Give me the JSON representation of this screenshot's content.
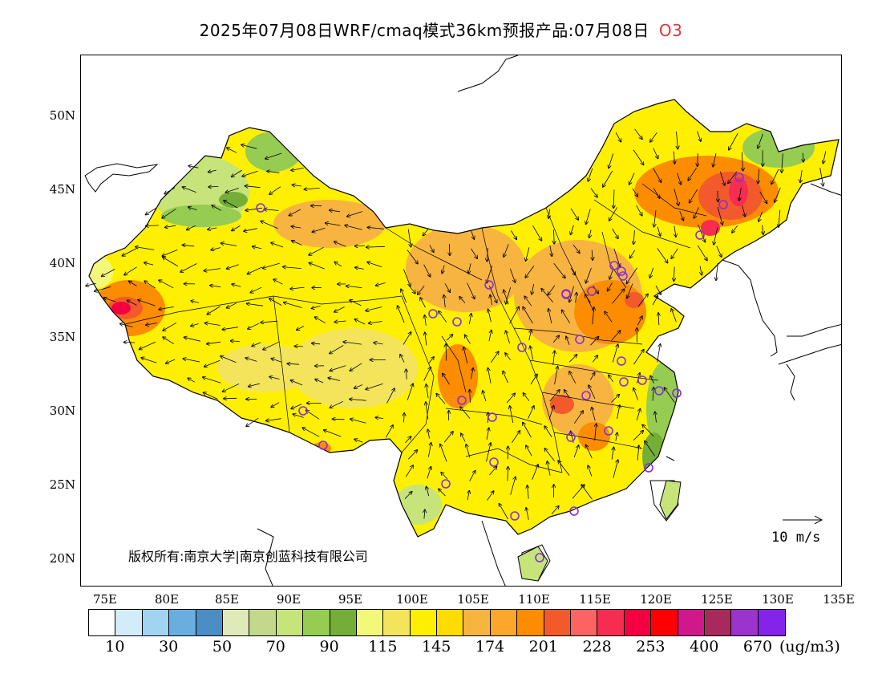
{
  "title": "2025年07月08日WRF/cmaq模式36km预报产品:07月08日",
  "species": "O3",
  "colors": {
    "species": "#e0333a",
    "base_fill": "#f7e04a"
  },
  "lat_labels": [
    "50N",
    "45N",
    "40N",
    "35N",
    "30N",
    "25N",
    "20N"
  ],
  "lon_labels": [
    "75E",
    "80E",
    "85E",
    "90E",
    "95E",
    "100E",
    "105E",
    "110E",
    "115E",
    "120E",
    "125E",
    "130E",
    "135E"
  ],
  "copyright": "版权所有:南京大学|南京创蓝科技有限公司",
  "reference_vector": "10 m/s",
  "legend": {
    "colors": [
      "#ffffff",
      "#d2ecf8",
      "#a0d4f0",
      "#6aaee0",
      "#4a8ec4",
      "#dfeab8",
      "#c2d98c",
      "#c6e47a",
      "#96cc52",
      "#74ae38",
      "#f4f87a",
      "#f4e45c",
      "#fef000",
      "#fedc00",
      "#f8b440",
      "#fca62a",
      "#fc8c00",
      "#f25a2c",
      "#fc6464",
      "#f62c50",
      "#f40040",
      "#fe0000",
      "#d0188c",
      "#a82a5c",
      "#9a34cc",
      "#8424ea"
    ],
    "ticks": [
      "10",
      "30",
      "50",
      "70",
      "90",
      "115",
      "145",
      "174",
      "201",
      "228",
      "253",
      "400",
      "670"
    ],
    "unit": "(ug/m3)"
  }
}
